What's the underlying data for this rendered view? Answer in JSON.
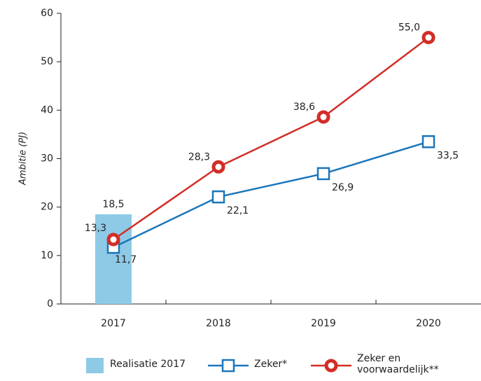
{
  "chart_data": {
    "type": "line",
    "y_label": "Ambitie (PJ)",
    "categories": [
      "2017",
      "2018",
      "2019",
      "2020"
    ],
    "ylim": [
      0,
      60
    ],
    "yticks": [
      0,
      10,
      20,
      30,
      40,
      50,
      60
    ],
    "series": [
      {
        "name": "Realisatie 2017",
        "type": "bar",
        "color": "#8ecae6",
        "values": [
          18.5,
          null,
          null,
          null
        ],
        "value_labels": [
          "18,5",
          null,
          null,
          null
        ]
      },
      {
        "name": "Zeker*",
        "type": "line",
        "marker": "square",
        "color": "#1a76bb",
        "values": [
          11.7,
          22.1,
          26.9,
          33.5
        ],
        "value_labels": [
          "11,7",
          "22,1",
          "26,9",
          "33,5"
        ]
      },
      {
        "name": "Zeker en voorwaardelijk**",
        "type": "line",
        "marker": "circle",
        "color": "#d22d27",
        "values": [
          13.3,
          28.3,
          38.6,
          55.0
        ],
        "value_labels": [
          "13,3",
          "28,3",
          "38,6",
          "55,0"
        ]
      }
    ]
  }
}
